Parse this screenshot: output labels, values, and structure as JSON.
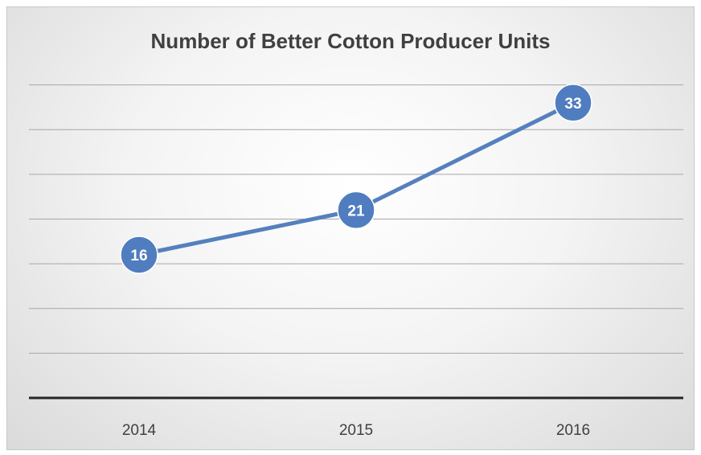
{
  "chart_data": {
    "type": "line",
    "title": "Number of Better Cotton Producer Units",
    "xlabel": "",
    "ylabel": "",
    "categories": [
      "2014",
      "2015",
      "2016"
    ],
    "series": [
      {
        "values": [
          16,
          21,
          33
        ]
      }
    ],
    "ylim": [
      0,
      40
    ],
    "grid": true,
    "legend": "none",
    "data_labels": true,
    "colors": {
      "line": "#5580bd",
      "marker": "#4f7dbf",
      "marker_border": "#ffffff",
      "label_text": "#ffffff",
      "grid": "#a6a6a6",
      "axis": "#262626"
    }
  }
}
